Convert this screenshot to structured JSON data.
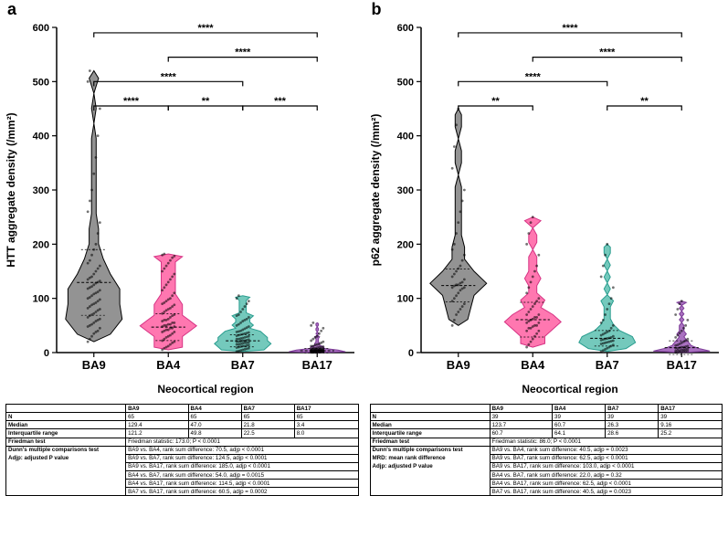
{
  "panels": {
    "a": {
      "label": "a",
      "y_label": "HTT aggregate density (/mm²)",
      "x_label": "Neocortical region",
      "ylim": [
        0,
        600
      ],
      "ytick_step": 100,
      "categories": [
        "BA9",
        "BA4",
        "BA7",
        "BA17"
      ],
      "series": [
        {
          "cat": "BA9",
          "color": "#808080",
          "outline": "#000000",
          "median": 129.4,
          "iqr": 121.2,
          "points": [
            20,
            25,
            30,
            35,
            38,
            40,
            45,
            48,
            50,
            52,
            55,
            58,
            60,
            62,
            65,
            68,
            70,
            72,
            75,
            78,
            80,
            82,
            85,
            88,
            90,
            92,
            95,
            98,
            100,
            102,
            105,
            108,
            110,
            112,
            115,
            118,
            120,
            122,
            125,
            128,
            130,
            132,
            135,
            138,
            140,
            145,
            150,
            155,
            160,
            165,
            170,
            180,
            190,
            200,
            220,
            240,
            260,
            280,
            300,
            330,
            360,
            400,
            450,
            500,
            520
          ]
        },
        {
          "cat": "BA4",
          "color": "#ff5fa2",
          "outline": "#d63384",
          "median": 47.0,
          "iqr": 49.8,
          "points": [
            5,
            8,
            10,
            12,
            15,
            18,
            20,
            22,
            25,
            28,
            30,
            32,
            35,
            38,
            40,
            42,
            45,
            48,
            50,
            52,
            55,
            58,
            60,
            62,
            65,
            68,
            70,
            72,
            75,
            78,
            80,
            82,
            85,
            88,
            90,
            92,
            95,
            98,
            100,
            105,
            110,
            115,
            120,
            125,
            130,
            135,
            140,
            145,
            150,
            155,
            160,
            165,
            170,
            175,
            178,
            180,
            182,
            45,
            50,
            42,
            38,
            55,
            48,
            52,
            60
          ]
        },
        {
          "cat": "BA7",
          "color": "#5cbfb0",
          "outline": "#2a9d8f",
          "median": 21.8,
          "iqr": 22.5,
          "points": [
            2,
            3,
            4,
            5,
            6,
            7,
            8,
            9,
            10,
            11,
            12,
            13,
            14,
            15,
            16,
            17,
            18,
            19,
            20,
            21,
            22,
            23,
            24,
            25,
            26,
            27,
            28,
            29,
            30,
            31,
            32,
            33,
            34,
            35,
            36,
            37,
            38,
            39,
            40,
            42,
            44,
            46,
            48,
            50,
            52,
            55,
            58,
            60,
            62,
            65,
            68,
            70,
            75,
            80,
            85,
            90,
            95,
            100,
            105,
            25,
            22,
            20,
            18,
            15,
            12
          ]
        },
        {
          "cat": "BA17",
          "color": "#9b59b6",
          "outline": "#7d3c98",
          "median": 3.4,
          "iqr": 8.0,
          "points": [
            0,
            0,
            0,
            0,
            0.5,
            0.5,
            1,
            1,
            1,
            1.5,
            1.5,
            2,
            2,
            2,
            2.5,
            2.5,
            3,
            3,
            3,
            3.5,
            3.5,
            4,
            4,
            4,
            4.5,
            5,
            5,
            5,
            5.5,
            6,
            6,
            6.5,
            7,
            7,
            8,
            8,
            9,
            10,
            10,
            11,
            12,
            12,
            14,
            15,
            16,
            18,
            20,
            22,
            25,
            28,
            30,
            35,
            40,
            45,
            50,
            55,
            5,
            4,
            3,
            2,
            2,
            3,
            4,
            5,
            6
          ]
        }
      ],
      "sig_bars": [
        {
          "from": 0,
          "to": 3,
          "y": 590,
          "label": "****"
        },
        {
          "from": 1,
          "to": 3,
          "y": 545,
          "label": "****"
        },
        {
          "from": 0,
          "to": 2,
          "y": 500,
          "label": "****"
        },
        {
          "from": 0,
          "to": 1,
          "y": 455,
          "label": "****",
          "half": "left"
        },
        {
          "from": 1,
          "to": 2,
          "y": 455,
          "label": "**",
          "half": "right"
        },
        {
          "from": 2,
          "to": 3,
          "y": 455,
          "label": "***",
          "half": "far-right"
        }
      ]
    },
    "b": {
      "label": "b",
      "y_label": "p62 aggregate density (/mm²)",
      "x_label": "Neocortical region",
      "ylim": [
        0,
        600
      ],
      "ytick_step": 100,
      "categories": [
        "BA9",
        "BA4",
        "BA7",
        "BA17"
      ],
      "series": [
        {
          "cat": "BA9",
          "color": "#808080",
          "outline": "#000000",
          "median": 123.7,
          "iqr": 60.7,
          "points": [
            50,
            60,
            70,
            75,
            80,
            85,
            90,
            95,
            100,
            105,
            110,
            115,
            120,
            123,
            125,
            128,
            130,
            135,
            140,
            145,
            150,
            155,
            160,
            170,
            180,
            190,
            200,
            220,
            240,
            260,
            280,
            300,
            340,
            380,
            420,
            450,
            125,
            120,
            118
          ]
        },
        {
          "cat": "BA4",
          "color": "#ff5fa2",
          "outline": "#d63384",
          "median": 60.7,
          "iqr": 64.1,
          "points": [
            10,
            15,
            20,
            25,
            30,
            35,
            40,
            45,
            50,
            55,
            60,
            65,
            70,
            75,
            80,
            85,
            90,
            95,
            100,
            110,
            120,
            130,
            140,
            150,
            160,
            180,
            200,
            220,
            240,
            250,
            62,
            58,
            55,
            50,
            48,
            65,
            70,
            45,
            40
          ]
        },
        {
          "cat": "BA7",
          "color": "#5cbfb0",
          "outline": "#2a9d8f",
          "median": 26.3,
          "iqr": 28.6,
          "points": [
            2,
            4,
            6,
            8,
            10,
            12,
            14,
            16,
            18,
            20,
            22,
            24,
            26,
            28,
            30,
            32,
            34,
            36,
            38,
            40,
            45,
            50,
            55,
            60,
            70,
            80,
            90,
            100,
            120,
            140,
            160,
            180,
            200,
            27,
            25,
            23,
            21,
            19,
            17
          ]
        },
        {
          "cat": "BA17",
          "color": "#9b59b6",
          "outline": "#7d3c98",
          "median": 9.16,
          "iqr": 25.2,
          "points": [
            0,
            0,
            1,
            1,
            2,
            2,
            3,
            3,
            4,
            4,
            5,
            5,
            6,
            7,
            8,
            9,
            10,
            11,
            12,
            13,
            14,
            16,
            18,
            20,
            22,
            25,
            28,
            32,
            36,
            40,
            45,
            50,
            60,
            70,
            80,
            90,
            95,
            10,
            8
          ]
        }
      ],
      "sig_bars": [
        {
          "from": 0,
          "to": 3,
          "y": 590,
          "label": "****"
        },
        {
          "from": 1,
          "to": 3,
          "y": 545,
          "label": "****"
        },
        {
          "from": 0,
          "to": 2,
          "y": 500,
          "label": "****"
        },
        {
          "from": 0,
          "to": 1,
          "y": 455,
          "label": "**",
          "half": "left"
        },
        {
          "from": 2,
          "to": 3,
          "y": 455,
          "label": "**",
          "half": "far-right"
        }
      ]
    }
  },
  "tables": {
    "a": {
      "header": [
        "",
        "BA9",
        "BA4",
        "BA7",
        "BA17"
      ],
      "rows": [
        [
          "N",
          "65",
          "65",
          "65",
          "65"
        ],
        [
          "Median",
          "129.4",
          "47.0",
          "21.8",
          "3.4"
        ],
        [
          "Interquartile range",
          "121.2",
          "49.8",
          "22.5",
          "8.0"
        ]
      ],
      "friedman_label": "Friedman test",
      "friedman_value": "Friedman statistic: 173.0; P < 0.0001",
      "dunn_label_1": "Dunn's multiple comparisons test",
      "dunn_label_2": "Adjp: adjusted P value",
      "dunn_rows": [
        "BA9 vs. BA4, rank sum difference: 70.5, adjp < 0.0001",
        "BA9 vs. BA7, rank sum difference: 124.5, adjp < 0.0001",
        "BA9 vs. BA17, rank sum difference: 185.0, adjp < 0.0001",
        "BA4 vs. BA7, rank sum difference: 54.0, adjp = 0.0015",
        "BA4 vs. BA17, rank sum difference: 114.5, adjp < 0.0001",
        "BA7 vs. BA17, rank sum difference: 60.5, adjp = 0.0002"
      ]
    },
    "b": {
      "header": [
        "",
        "BA9",
        "BA4",
        "BA7",
        "BA17"
      ],
      "rows": [
        [
          "N",
          "39",
          "39",
          "39",
          "39"
        ],
        [
          "Median",
          "123.7",
          "60.7",
          "26.3",
          "9.16"
        ],
        [
          "Interquartile range",
          "60.7",
          "64.1",
          "28.6",
          "25.2"
        ]
      ],
      "friedman_label": "Friedman test",
      "friedman_value": "Friedman statistic: 86.0; P < 0.0001",
      "dunn_label_1": "Dunn's multiple comparisons test",
      "dunn_label_2": "MRD: mean rank difference",
      "dunn_label_3": "Adjp: adjusted P value",
      "dunn_rows": [
        "BA9 vs. BA4, rank sum difference: 40.5, adjp = 0.0023",
        "BA9 vs. BA7, rank sum difference: 62.5, adjp < 0.0001",
        "BA9 vs. BA17, rank sum difference: 103.0, adjp < 0.0001",
        "BA4 vs. BA7, rank sum difference: 22.0, adjp = 0.32",
        "BA4 vs. BA17, rank sum difference: 62.5, adjp < 0.0001",
        "BA7 vs. BA17, rank sum difference: 40.5, adjp = 0.0023"
      ]
    }
  },
  "colors": {
    "axis": "#000000",
    "bg": "#ffffff",
    "tick": "#000000"
  }
}
